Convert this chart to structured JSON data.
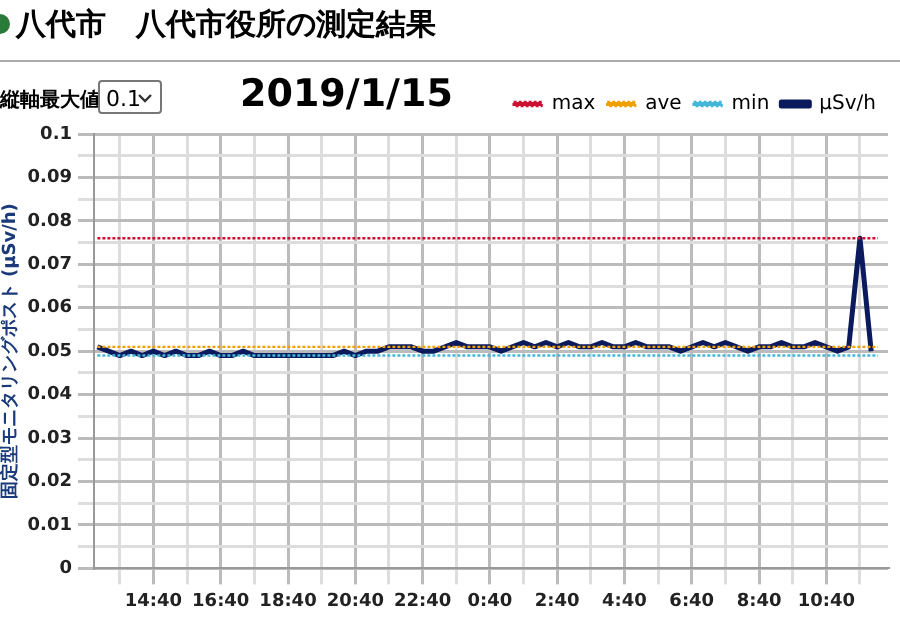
{
  "chart_data": {
    "type": "line",
    "title": "八代市　八代市役所の測定結果",
    "subtitle": "2019/1/15",
    "ylabel": "固定型モニタリングポスト (μSv/h)",
    "annotations": [
      "縦軸最大値",
      "0.1"
    ],
    "xlim": [
      "2019-01-14T12:54",
      "2019-01-15T12:30"
    ],
    "xticks": [
      {
        "value": "2019-01-14T13:40",
        "label": null
      },
      {
        "value": "2019-01-14T14:40",
        "label": "14:40"
      },
      {
        "value": "2019-01-14T15:40",
        "label": null
      },
      {
        "value": "2019-01-14T16:40",
        "label": "16:40"
      },
      {
        "value": "2019-01-14T17:40",
        "label": null
      },
      {
        "value": "2019-01-14T18:40",
        "label": "18:40"
      },
      {
        "value": "2019-01-14T19:40",
        "label": null
      },
      {
        "value": "2019-01-14T20:40",
        "label": "20:40"
      },
      {
        "value": "2019-01-14T21:40",
        "label": null
      },
      {
        "value": "2019-01-14T22:40",
        "label": "22:40"
      },
      {
        "value": "2019-01-14T23:40",
        "label": null
      },
      {
        "value": "2019-01-15T00:40",
        "label": "0:40"
      },
      {
        "value": "2019-01-15T01:40",
        "label": null
      },
      {
        "value": "2019-01-15T02:40",
        "label": "2:40"
      },
      {
        "value": "2019-01-15T03:40",
        "label": null
      },
      {
        "value": "2019-01-15T04:40",
        "label": "4:40"
      },
      {
        "value": "2019-01-15T05:40",
        "label": null
      },
      {
        "value": "2019-01-15T06:40",
        "label": "6:40"
      },
      {
        "value": "2019-01-15T07:40",
        "label": null
      },
      {
        "value": "2019-01-15T08:40",
        "label": "8:40"
      },
      {
        "value": "2019-01-15T09:40",
        "label": null
      },
      {
        "value": "2019-01-15T10:40",
        "label": "10:40"
      },
      {
        "value": "2019-01-15T11:40",
        "label": null
      }
    ],
    "ylim": [
      0,
      0.1
    ],
    "yticks": [
      0,
      {
        "value": 0.005,
        "label": null
      },
      0.01,
      {
        "value": 0.015,
        "label": null
      },
      0.02,
      {
        "value": 0.025,
        "label": null
      },
      0.03,
      {
        "value": 0.035,
        "label": null
      },
      0.04,
      {
        "value": 0.045,
        "label": null
      },
      0.05,
      {
        "value": 0.055,
        "label": null
      },
      0.06,
      {
        "value": 0.065,
        "label": null
      },
      0.07,
      {
        "value": 0.075,
        "label": null
      },
      0.08,
      {
        "value": 0.085,
        "label": null
      },
      0.09,
      {
        "value": 0.095,
        "label": null
      },
      0.1
    ],
    "grid": true,
    "legend": "top right",
    "marker": "none",
    "series": [
      {
        "name": "μSv/h",
        "color": "#0a1a5c",
        "line_style": "solid",
        "x": [
          "2019-01-14T13:00",
          "2019-01-14T13:20",
          "2019-01-14T13:40",
          "2019-01-14T14:00",
          "2019-01-14T14:20",
          "2019-01-14T14:40",
          "2019-01-14T15:00",
          "2019-01-14T15:20",
          "2019-01-14T15:40",
          "2019-01-14T16:00",
          "2019-01-14T16:20",
          "2019-01-14T16:40",
          "2019-01-14T17:00",
          "2019-01-14T17:20",
          "2019-01-14T17:40",
          "2019-01-14T18:00",
          "2019-01-14T18:20",
          "2019-01-14T18:40",
          "2019-01-14T19:00",
          "2019-01-14T19:20",
          "2019-01-14T19:40",
          "2019-01-14T20:00",
          "2019-01-14T20:20",
          "2019-01-14T20:40",
          "2019-01-14T21:00",
          "2019-01-14T21:20",
          "2019-01-14T21:40",
          "2019-01-14T22:00",
          "2019-01-14T22:20",
          "2019-01-14T22:40",
          "2019-01-14T23:00",
          "2019-01-14T23:20",
          "2019-01-14T23:40",
          "2019-01-15T00:00",
          "2019-01-15T00:20",
          "2019-01-15T00:40",
          "2019-01-15T01:00",
          "2019-01-15T01:20",
          "2019-01-15T01:40",
          "2019-01-15T02:00",
          "2019-01-15T02:20",
          "2019-01-15T02:40",
          "2019-01-15T03:00",
          "2019-01-15T03:20",
          "2019-01-15T03:40",
          "2019-01-15T04:00",
          "2019-01-15T04:20",
          "2019-01-15T04:40",
          "2019-01-15T05:00",
          "2019-01-15T05:20",
          "2019-01-15T05:40",
          "2019-01-15T06:00",
          "2019-01-15T06:20",
          "2019-01-15T06:40",
          "2019-01-15T07:00",
          "2019-01-15T07:20",
          "2019-01-15T07:40",
          "2019-01-15T08:00",
          "2019-01-15T08:20",
          "2019-01-15T08:40",
          "2019-01-15T09:00",
          "2019-01-15T09:20",
          "2019-01-15T09:40",
          "2019-01-15T10:00",
          "2019-01-15T10:20",
          "2019-01-15T10:40",
          "2019-01-15T11:00",
          "2019-01-15T11:20",
          "2019-01-15T11:40",
          "2019-01-15T12:00"
        ],
        "values": [
          0.051,
          0.05,
          0.049,
          0.05,
          0.049,
          0.05,
          0.049,
          0.05,
          0.049,
          0.049,
          0.05,
          0.049,
          0.049,
          0.05,
          0.049,
          0.049,
          0.049,
          0.049,
          0.049,
          0.049,
          0.049,
          0.049,
          0.05,
          0.049,
          0.05,
          0.05,
          0.051,
          0.051,
          0.051,
          0.05,
          0.05,
          0.051,
          0.052,
          0.051,
          0.051,
          0.051,
          0.05,
          0.051,
          0.052,
          0.051,
          0.052,
          0.051,
          0.052,
          0.051,
          0.051,
          0.052,
          0.051,
          0.051,
          0.052,
          0.051,
          0.051,
          0.051,
          0.05,
          0.051,
          0.052,
          0.051,
          0.052,
          0.051,
          0.05,
          0.051,
          0.051,
          0.052,
          0.051,
          0.051,
          0.052,
          0.051,
          0.05,
          0.051,
          0.076,
          0.05
        ]
      },
      {
        "name": "max",
        "color": "#cc1133",
        "line_style": "dotted",
        "x": [
          "2019-01-14T13:00",
          "2019-01-15T12:12"
        ],
        "values": [
          0.076,
          0.076
        ]
      },
      {
        "name": "ave",
        "color": "#f0a000",
        "line_style": "dotted",
        "x": [
          "2019-01-14T13:00",
          "2019-01-15T12:12"
        ],
        "values": [
          0.051,
          0.051
        ]
      },
      {
        "name": "min",
        "color": "#44b8d8",
        "line_style": "dotted",
        "x": [
          "2019-01-14T13:00",
          "2019-01-15T12:12"
        ],
        "values": [
          0.049,
          0.049
        ]
      }
    ]
  }
}
